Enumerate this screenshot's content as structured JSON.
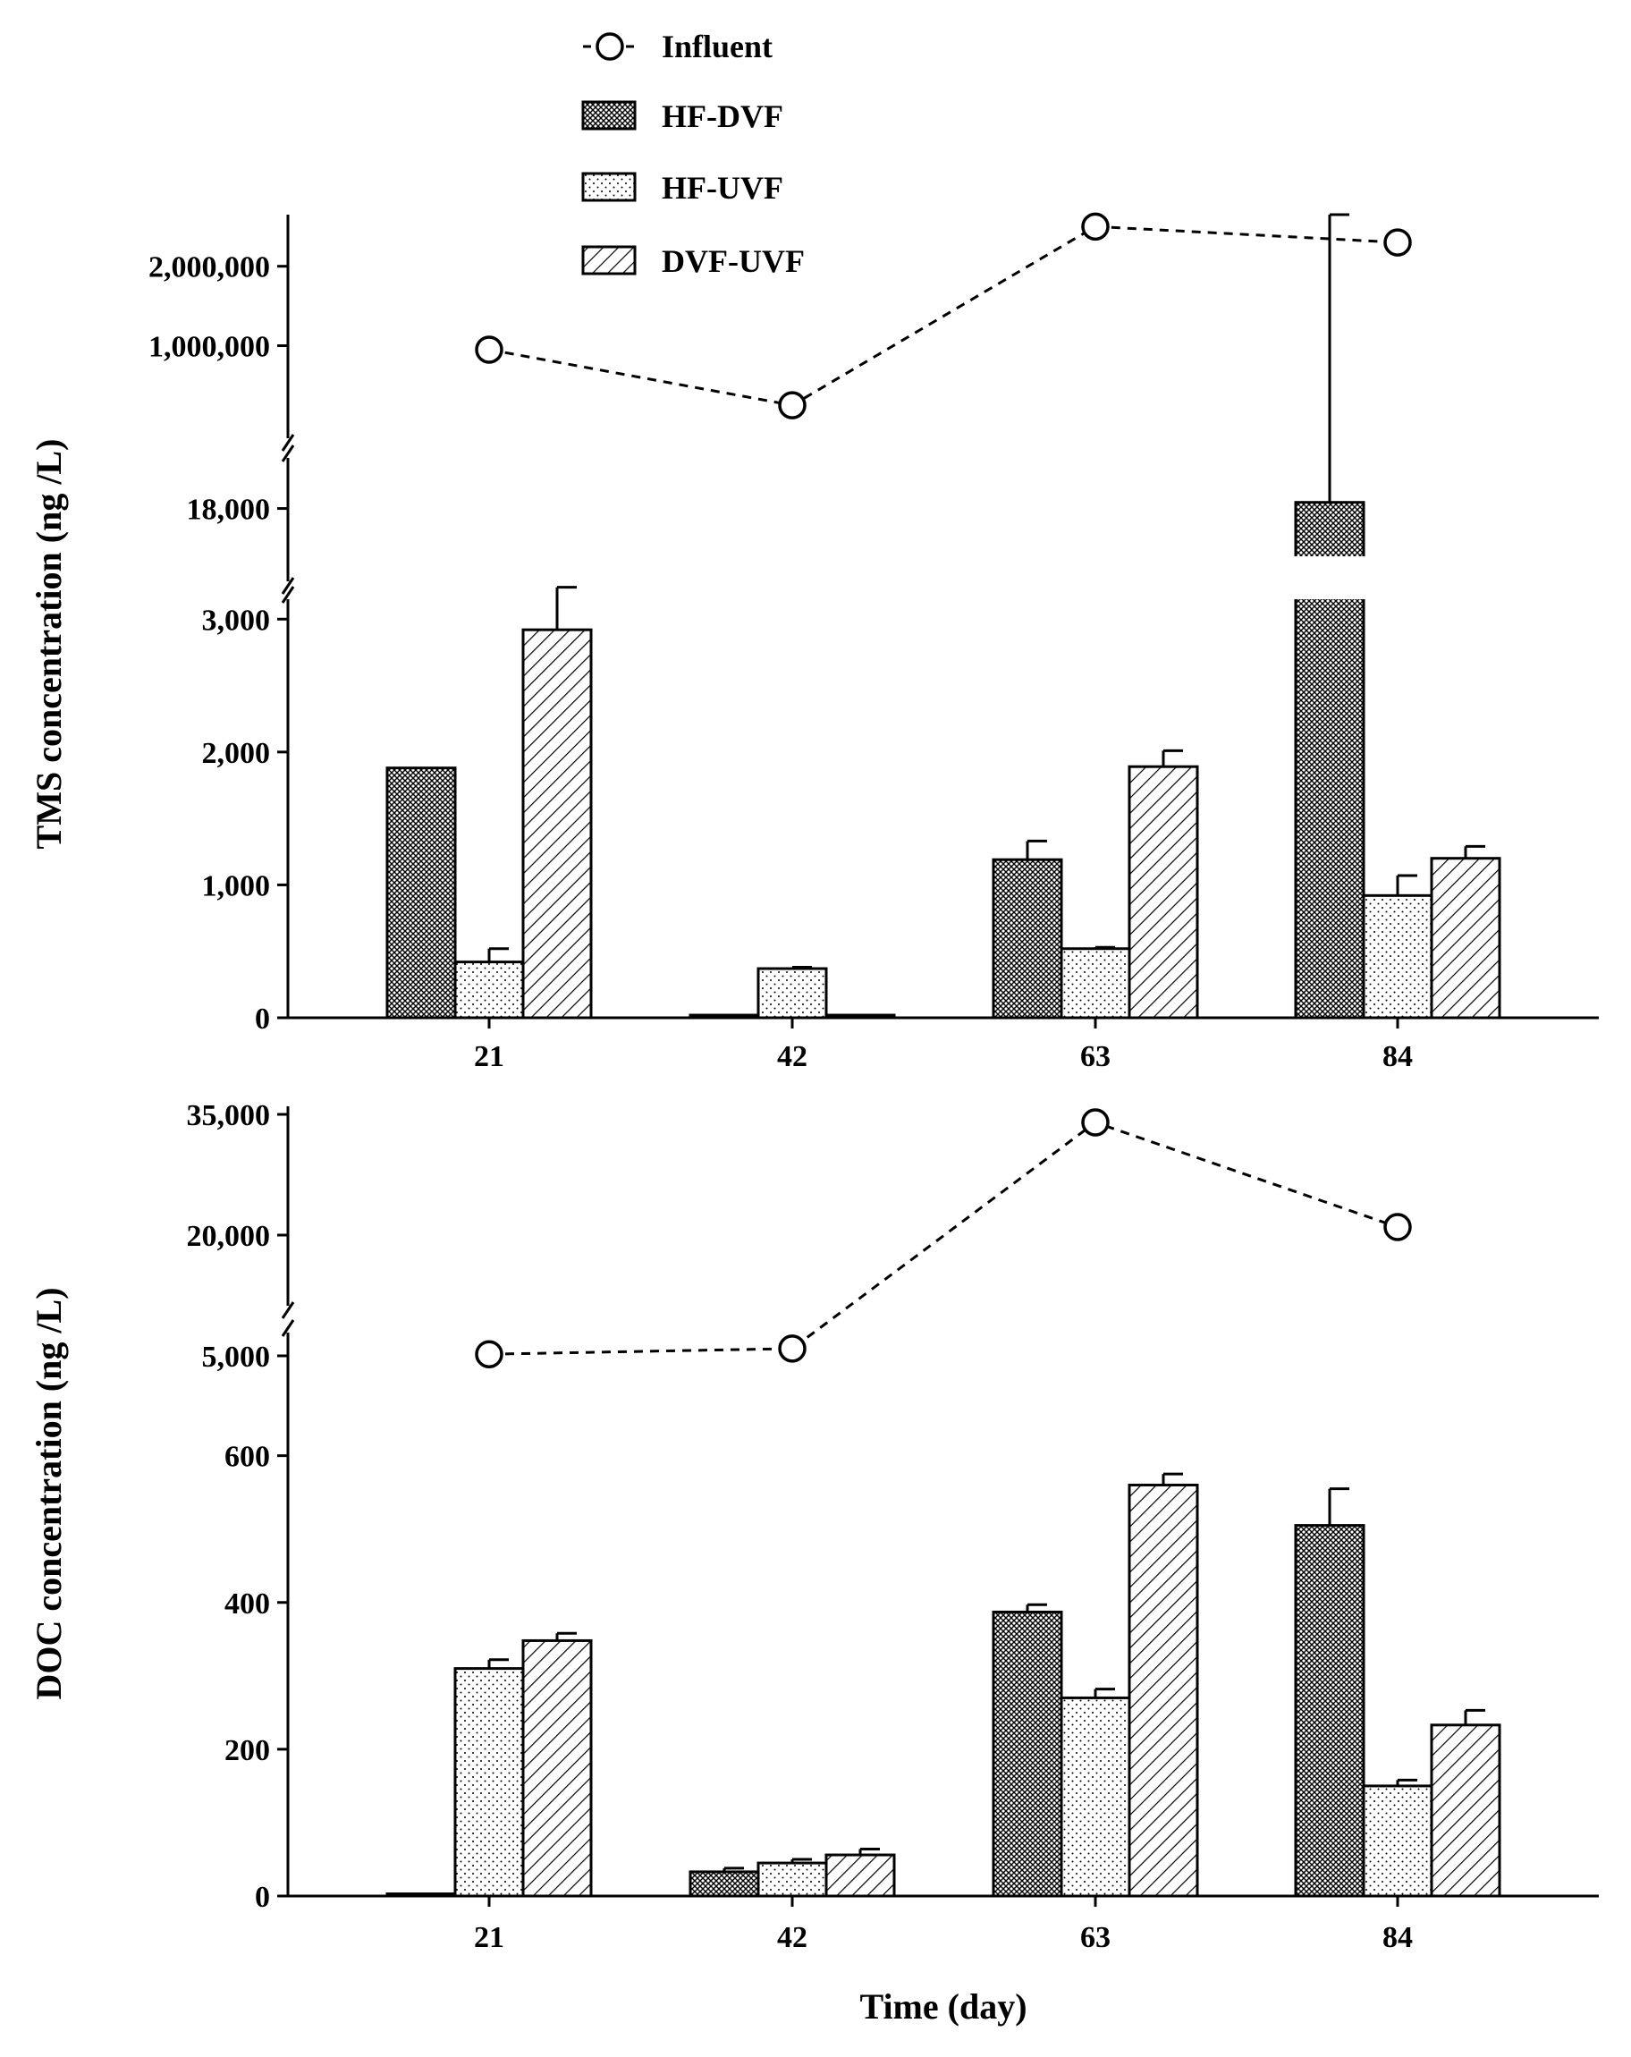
{
  "chart_data": [
    {
      "type": "bar",
      "title": "",
      "ylabel": "TMS concentration  (ng /L)",
      "xlabel": "",
      "categories": [
        "21",
        "42",
        "63",
        "84"
      ],
      "legend": {
        "placement": "top",
        "entries": [
          {
            "name": "Influent",
            "kind": "line-marker"
          },
          {
            "name": "HF-DVF",
            "kind": "bar",
            "pattern": "crosshatch"
          },
          {
            "name": "HF-UVF",
            "kind": "bar",
            "pattern": "dots"
          },
          {
            "name": "DVF-UVF",
            "kind": "bar",
            "pattern": "diagonal"
          }
        ]
      },
      "series": [
        {
          "name": "HF-DVF",
          "values": [
            1880,
            20,
            1190,
            18200
          ],
          "errors": [
            0,
            0,
            140,
            2100
          ]
        },
        {
          "name": "HF-UVF",
          "values": [
            420,
            370,
            520,
            920
          ],
          "errors": [
            100,
            10,
            10,
            150
          ]
        },
        {
          "name": "DVF-UVF",
          "values": [
            2920,
            20,
            1890,
            1200
          ],
          "errors": [
            320,
            0,
            120,
            90
          ]
        }
      ],
      "line_series": {
        "name": "Influent",
        "values": [
          950000,
          250000,
          2500000,
          2300000
        ]
      },
      "y_segments": [
        {
          "range": [
            0,
            3500
          ],
          "ticks": [
            0,
            1000,
            2000,
            3000
          ],
          "tick_labels": [
            "0",
            "1,000",
            "2,000",
            "3,000"
          ]
        },
        {
          "range": [
            16500,
            20000
          ],
          "ticks": [
            18000
          ],
          "tick_labels": [
            "18,000"
          ]
        },
        {
          "range": [
            150000,
            2650000
          ],
          "ticks": [
            1000000,
            2000000
          ],
          "tick_labels": [
            "1,000,000",
            "2,000,000"
          ]
        }
      ]
    },
    {
      "type": "bar",
      "title": "",
      "ylabel": "DOC concentration  (ng /L)",
      "xlabel": "Time (day)",
      "categories": [
        "21",
        "42",
        "63",
        "84"
      ],
      "series": [
        {
          "name": "HF-DVF",
          "values": [
            3,
            33,
            387,
            505
          ],
          "errors": [
            0,
            5,
            10,
            50
          ]
        },
        {
          "name": "HF-UVF",
          "values": [
            310,
            45,
            270,
            150
          ],
          "errors": [
            12,
            5,
            12,
            8
          ]
        },
        {
          "name": "DVF-UVF",
          "values": [
            348,
            56,
            560,
            233
          ],
          "errors": [
            10,
            8,
            15,
            20
          ]
        }
      ],
      "line_series": {
        "name": "Influent",
        "values": [
          5200,
          5900,
          34000,
          21000
        ]
      },
      "y_segments": [
        {
          "range": [
            0,
            680
          ],
          "ticks": [
            0,
            200,
            400,
            600
          ],
          "tick_labels": [
            "0",
            "200",
            "400",
            "600"
          ]
        },
        {
          "range": [
            4000,
            36000
          ],
          "ticks": [
            5000,
            20000,
            35000
          ],
          "tick_labels": [
            "5,000",
            "20,000",
            "35,000"
          ]
        }
      ]
    }
  ]
}
